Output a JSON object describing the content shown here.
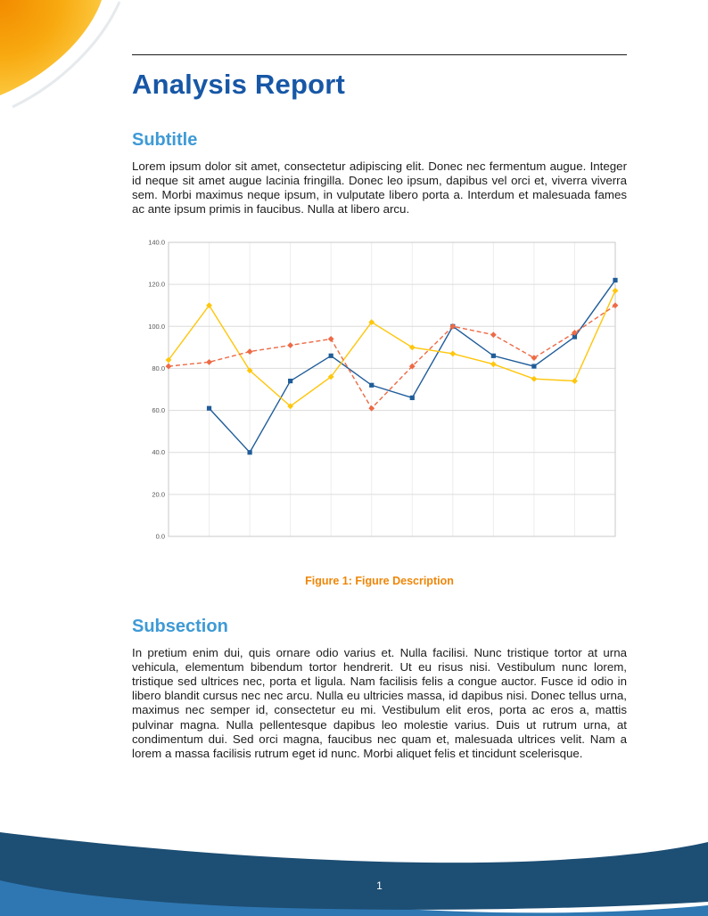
{
  "doc": {
    "title": "Analysis Report",
    "sections": [
      {
        "heading": "Subtitle",
        "body": "Lorem ipsum dolor sit amet, consectetur adipiscing elit. Donec nec fermentum augue. Integer id neque sit amet augue lacinia fringilla. Donec leo ipsum, dapibus vel orci et, viverra viverra sem. Morbi maximus neque ipsum, in vulputate libero porta a. Interdum et malesuada fames ac ante ipsum primis in faucibus. Nulla at libero arcu."
      },
      {
        "heading": "Subsection",
        "body": "In pretium enim dui, quis ornare odio varius et. Nulla facilisi. Nunc tristique tortor at urna vehicula, elementum bibendum tortor hendrerit. Ut eu risus nisi. Vestibulum nunc lorem, tristique sed ultrices nec, porta et ligula. Nam facilisis felis a congue auctor. Fusce id odio in libero blandit cursus nec nec arcu. Nulla eu ultricies massa, id dapibus nisi. Donec tellus urna, maximus nec semper id, consectetur eu mi. Vestibulum elit eros, porta ac eros a, mattis pulvinar magna. Nulla pellentesque dapibus leo molestie varius. Duis ut rutrum urna, at condimentum dui. Sed orci magna, faucibus nec quam et, malesuada ultrices velit. Nam a lorem a massa facilisis rutrum eget id nunc. Morbi aliquet felis et tincidunt scelerisque."
      }
    ]
  },
  "figure": {
    "label": "Figure 1:",
    "description": "Figure Description"
  },
  "footer": {
    "page_number": "1"
  },
  "colors": {
    "title_blue": "#1757A6",
    "heading_blue": "#3E9AD6",
    "caption_orange": "#EE8608",
    "footer_navy": "#1D4E74",
    "footer_light_blue": "#2E77B2",
    "swoosh_orange": "#F28B00",
    "swoosh_yellow": "#FFDC5E"
  },
  "chart_data": {
    "type": "line",
    "title": "",
    "xlabel": "",
    "ylabel": "",
    "x": [
      1,
      2,
      3,
      4,
      5,
      6,
      7,
      8,
      9,
      10,
      11,
      12
    ],
    "x_labels_visible": false,
    "ylim": [
      0,
      140
    ],
    "ytick_step": 20,
    "ytick_format": "one-decimal",
    "grid": true,
    "legend": "none",
    "series": [
      {
        "name": "series-blue",
        "color": "#1F5C99",
        "dash": "none",
        "marker": "square",
        "values": [
          null,
          61,
          40,
          74,
          86,
          72,
          66,
          100,
          86,
          81,
          95,
          122
        ]
      },
      {
        "name": "series-yellow",
        "color": "#FFC60B",
        "dash": "none",
        "marker": "diamond",
        "values": [
          84,
          110,
          79,
          62,
          76,
          102,
          90,
          87,
          82,
          75,
          74,
          117
        ]
      },
      {
        "name": "series-orange",
        "color": "#ED6A45",
        "dash": "dashed",
        "marker": "diamond",
        "values": [
          81,
          83,
          88,
          91,
          94,
          61,
          81,
          100,
          96,
          85,
          97,
          110
        ]
      }
    ]
  }
}
